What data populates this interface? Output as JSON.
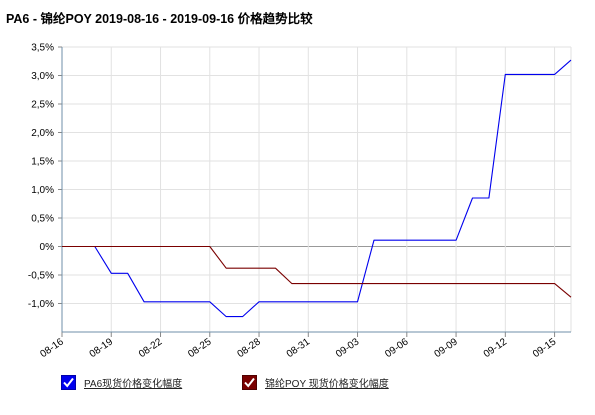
{
  "chart_data": {
    "type": "line",
    "title": "PA6 - 锦纶POY 2019-08-16 - 2019-09-16 价格趋势比较",
    "x_ticks": [
      "08-16",
      "08-19",
      "08-22",
      "08-25",
      "08-28",
      "08-31",
      "09-03",
      "09-06",
      "09-09",
      "09-12",
      "09-15"
    ],
    "y_ticks": [
      "3,5%",
      "3,0%",
      "2,5%",
      "2,0%",
      "1,5%",
      "1,0%",
      "0,5%",
      "0%",
      "-0,5%",
      "-1,0%"
    ],
    "ylim": [
      -1.5,
      3.5
    ],
    "xlim": [
      "2019-08-16",
      "2019-09-16"
    ],
    "grid": true,
    "legend_position": "bottom",
    "series": [
      {
        "name": "PA6现货价格变化幅度",
        "color": "#0000ee",
        "points": [
          [
            "2019-08-16",
            0
          ],
          [
            "2019-08-18",
            0
          ],
          [
            "2019-08-19",
            -0.47
          ],
          [
            "2019-08-20",
            -0.47
          ],
          [
            "2019-08-21",
            -0.97
          ],
          [
            "2019-08-25",
            -0.97
          ],
          [
            "2019-08-26",
            -1.23
          ],
          [
            "2019-08-27",
            -1.23
          ],
          [
            "2019-08-28",
            -0.97
          ],
          [
            "2019-09-03",
            -0.97
          ],
          [
            "2019-09-04",
            0.11
          ],
          [
            "2019-09-09",
            0.11
          ],
          [
            "2019-09-10",
            0.85
          ],
          [
            "2019-09-11",
            0.85
          ],
          [
            "2019-09-12",
            3.02
          ],
          [
            "2019-09-15",
            3.02
          ],
          [
            "2019-09-16",
            3.27
          ]
        ]
      },
      {
        "name": "锦纶POY 现货价格变化幅度",
        "color": "#7a0000",
        "points": [
          [
            "2019-08-16",
            0
          ],
          [
            "2019-08-25",
            0
          ],
          [
            "2019-08-26",
            -0.38
          ],
          [
            "2019-08-29",
            -0.38
          ],
          [
            "2019-08-30",
            -0.65
          ],
          [
            "2019-09-15",
            -0.65
          ],
          [
            "2019-09-16",
            -0.89
          ]
        ]
      }
    ]
  }
}
